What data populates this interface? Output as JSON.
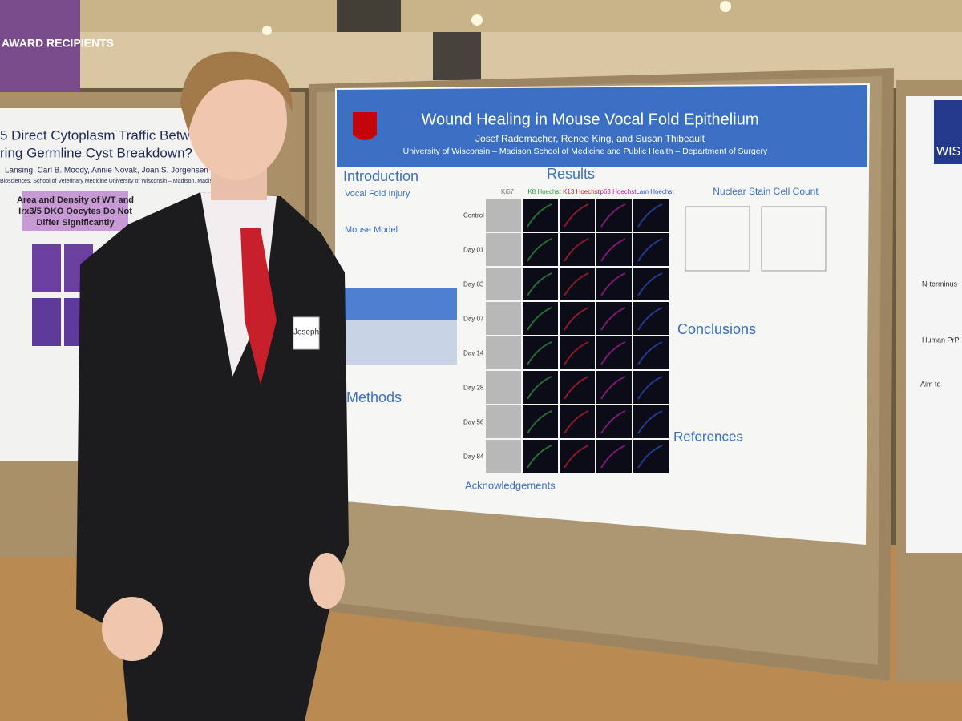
{
  "sign": "AWARD RECIPIENTS",
  "left_poster": {
    "title_lines": [
      "5 Direct Cytoplasm Traffic Between",
      "ring Germline Cyst Breakdown?"
    ],
    "authors": "Lansing, Carl B. Moody, Annie Novak, Joan S. Jorgensen",
    "affiliation": "Biosciences, School of Veterinary Medicine University of Wisconsin – Madison, Madison",
    "box_heading_lines": [
      "Area and Density of WT and",
      "Irx3/5 DKO Oocytes Do Not",
      "Differ Significantly"
    ]
  },
  "poster": {
    "title": "Wound Healing in Mouse Vocal Fold Epithelium",
    "authors": "Josef Rademacher, Renee King, and Susan Thibeault",
    "affiliation": "University of Wisconsin – Madison School of Medicine and Public Health – Department of Surgery",
    "sections": {
      "introduction": "Introduction",
      "results": "Results",
      "methods": "Methods",
      "conclusions": "Conclusions",
      "references": "References",
      "acknowledgements": "Acknowledgements"
    },
    "subheadings": [
      "Vocal Fold Injury",
      "Mouse Model"
    ],
    "stain_columns": [
      "Ki67",
      "K8 Hoechst",
      "K13 Hoechst",
      "p63 Hoechst",
      "Lam Hoechst"
    ],
    "rows": [
      "Control",
      "Day 01",
      "Day 03",
      "Day 07",
      "Day 14",
      "Day 28",
      "Day 56",
      "Day 84"
    ],
    "chart_title": "Nuclear Stain Cell Count"
  },
  "right_poster": {
    "logo": "WIS",
    "label_1": "N-terminus",
    "label_2": "Human PrP",
    "label_3": "Aim to"
  },
  "name_tag": "Joseph"
}
